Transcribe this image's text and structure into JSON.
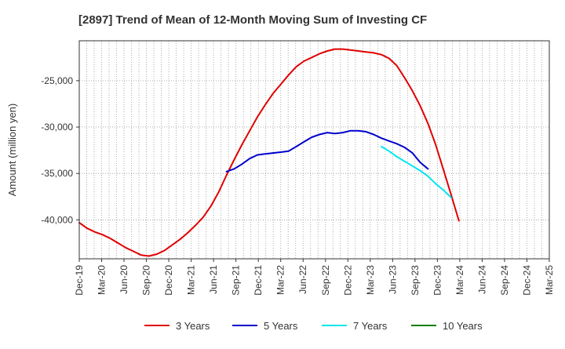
{
  "chart_data": {
    "type": "line",
    "title": "[2897]  Trend of Mean of 12-Month Moving Sum of Investing CF",
    "xlabel": "",
    "ylabel": "Amount (million yen)",
    "x_ticks": [
      "Dec-19",
      "Mar-20",
      "Jun-20",
      "Sep-20",
      "Dec-20",
      "Mar-21",
      "Jun-21",
      "Sep-21",
      "Dec-21",
      "Mar-22",
      "Jun-22",
      "Sep-22",
      "Dec-22",
      "Mar-23",
      "Jun-23",
      "Sep-23",
      "Dec-23",
      "Mar-24",
      "Jun-24",
      "Sep-24",
      "Dec-24",
      "Mar-25"
    ],
    "y_ticks": [
      -40000,
      -35000,
      -30000,
      -25000
    ],
    "y_tick_labels": [
      "-40,000",
      "-35,000",
      "-30,000",
      "-25,000"
    ],
    "ylim": [
      -44200,
      -20700
    ],
    "grid": true,
    "legend_position": "bottom",
    "series": [
      {
        "name": "3 Years",
        "color": "#e00000",
        "start_index": 0,
        "values": [
          -40300,
          -40900,
          -41300,
          -41600,
          -42000,
          -42500,
          -43000,
          -43400,
          -43800,
          -43900,
          -43700,
          -43300,
          -42700,
          -42100,
          -41400,
          -40600,
          -39700,
          -38500,
          -37000,
          -35200,
          -33500,
          -31900,
          -30400,
          -28900,
          -27600,
          -26400,
          -25400,
          -24400,
          -23500,
          -22900,
          -22500,
          -22100,
          -21800,
          -21600,
          -21600,
          -21700,
          -21800,
          -21900,
          -22000,
          -22200,
          -22600,
          -23400,
          -24700,
          -26100,
          -27700,
          -29600,
          -31900,
          -34600,
          -37300,
          -40100
        ]
      },
      {
        "name": "5 Years",
        "color": "#0000cc",
        "start_index": 19,
        "values": [
          -34800,
          -34500,
          -34000,
          -33400,
          -33000,
          -32900,
          -32800,
          -32700,
          -32600,
          -32100,
          -31600,
          -31100,
          -30800,
          -30600,
          -30700,
          -30600,
          -30400,
          -30400,
          -30500,
          -30800,
          -31200,
          -31500,
          -31800,
          -32200,
          -32800,
          -33800,
          -34500
        ]
      },
      {
        "name": "7 Years",
        "color": "#00e5ee",
        "start_index": 39,
        "values": [
          -32100,
          -32600,
          -33200,
          -33700,
          -34200,
          -34700,
          -35300,
          -36100,
          -36800,
          -37600
        ]
      },
      {
        "name": "10 Years",
        "color": "#008000",
        "start_index": 0,
        "values": []
      }
    ]
  }
}
